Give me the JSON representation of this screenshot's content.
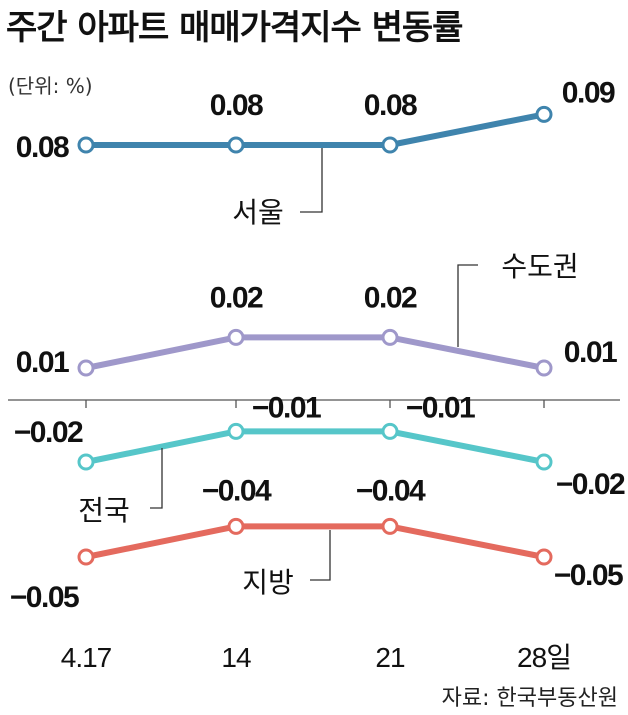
{
  "title": "주간 아파트 매매가격지수 변동률",
  "unit_label": "(단위: %)",
  "source": "자료: 한국부동산원",
  "chart_data": {
    "type": "line",
    "title": "주간 아파트 매매가격지수 변동률",
    "unit": "%",
    "categories": [
      "4.17",
      "14",
      "21",
      "28일"
    ],
    "series": [
      {
        "name": "서울",
        "values": [
          0.08,
          0.08,
          0.08,
          0.09
        ],
        "labels": [
          "0.08",
          "0.08",
          "0.08",
          "0.09"
        ],
        "color": "#3f84ad"
      },
      {
        "name": "수도권",
        "values": [
          0.01,
          0.02,
          0.02,
          0.01
        ],
        "labels": [
          "0.01",
          "0.02",
          "0.02",
          "0.01"
        ],
        "color": "#9f98ca"
      },
      {
        "name": "전국",
        "values": [
          -0.02,
          -0.01,
          -0.01,
          -0.02
        ],
        "labels": [
          "−0.02",
          "−0.01",
          "−0.01",
          "−0.02"
        ],
        "color": "#56c6c9"
      },
      {
        "name": "지방",
        "values": [
          -0.05,
          -0.04,
          -0.04,
          -0.05
        ],
        "labels": [
          "−0.05",
          "−0.04",
          "−0.04",
          "−0.05"
        ],
        "color": "#e46a5e"
      }
    ],
    "legend": "inline-callouts",
    "grid": false
  }
}
